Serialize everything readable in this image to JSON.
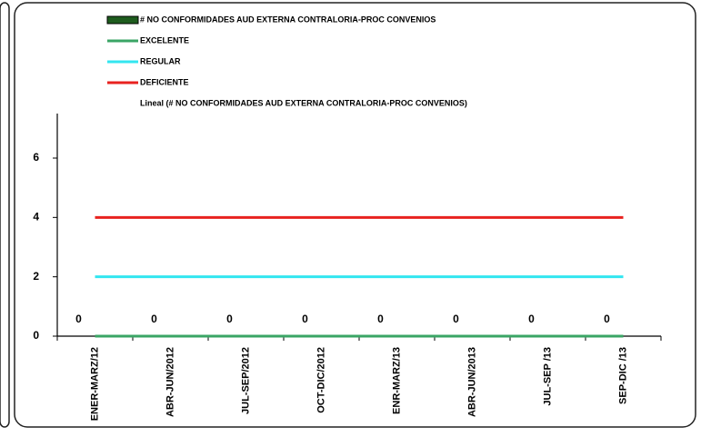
{
  "chart_data": {
    "type": "bar_line",
    "categories": [
      "ENER-MARZ/12",
      "ABR-JUN/2012",
      "JUL-SEP/2012",
      "OCT-DIC/2012",
      "ENR-MARZ/13",
      "ABR-JUN/2013",
      "JUL-SEP /13",
      "SEP-DIC /13"
    ],
    "series": [
      {
        "name": "# NO CONFORMIDADES AUD EXTERNA CONTRALORIA-PROC CONVENIOS",
        "type": "bar",
        "color": "#1e5c1e",
        "values": [
          0,
          0,
          0,
          0,
          0,
          0,
          0,
          0
        ]
      },
      {
        "name": "EXCELENTE",
        "type": "line",
        "color": "#3aa565",
        "values": [
          0,
          0,
          0,
          0,
          0,
          0,
          0,
          0
        ]
      },
      {
        "name": "REGULAR",
        "type": "line",
        "color": "#33e6f0",
        "values": [
          2,
          2,
          2,
          2,
          2,
          2,
          2,
          2
        ]
      },
      {
        "name": "DEFICIENTE",
        "type": "line",
        "color": "#e8221f",
        "values": [
          4,
          4,
          4,
          4,
          4,
          4,
          4,
          4
        ]
      }
    ],
    "trendline_label": "Lineal (# NO CONFORMIDADES AUD EXTERNA CONTRALORIA-PROC CONVENIOS)",
    "ylim": [
      0,
      7.5
    ],
    "yticks": [
      0,
      2,
      4,
      6
    ]
  }
}
